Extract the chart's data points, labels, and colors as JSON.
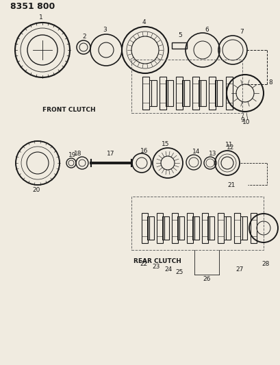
{
  "title": "8351 800",
  "background_color": "#f0ebe0",
  "line_color": "#1a1a1a",
  "front_clutch_label": "FRONT CLUTCH",
  "rear_clutch_label": "REAR CLUTCH",
  "figsize": [
    4.1,
    5.33
  ],
  "dpi": 100
}
